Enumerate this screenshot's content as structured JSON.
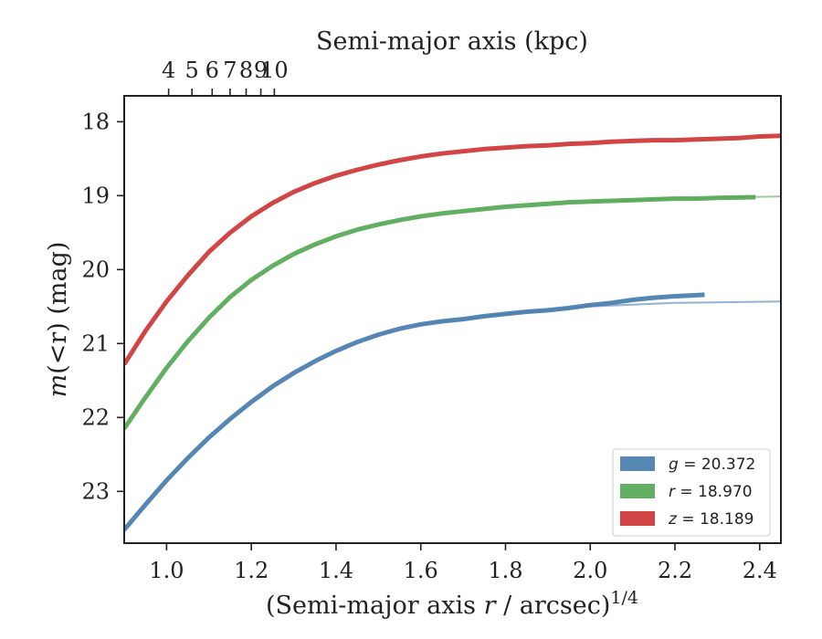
{
  "chart_data": {
    "type": "line",
    "xlabel": "(Semi-major axis ",
    "xlabel_var": "r",
    "xlabel_rest": " / arcsec)",
    "xlabel_exp": "1/4",
    "x2label": "Semi-major axis (kpc)",
    "ylabel": "m",
    "ylabel_rest": "(<r) (mag)",
    "xlim": [
      0.9,
      2.45
    ],
    "ylim": [
      23.7,
      17.65
    ],
    "y_inverted": true,
    "x_ticks": [
      "1.0",
      "1.2",
      "1.4",
      "1.6",
      "1.8",
      "2.0",
      "2.2",
      "2.4"
    ],
    "y_ticks": [
      "18",
      "19",
      "20",
      "21",
      "22",
      "23"
    ],
    "x2_ticks": [
      "4",
      "5",
      "6",
      "7",
      "8",
      "9",
      "10"
    ],
    "x2_scale_note": "kpc = 4.12 * x^4 - 0.2 approx",
    "legend_position": "lower-right",
    "series": [
      {
        "name": "g = 20.372",
        "band": "g",
        "total": "20.372",
        "color": "#4c7fb0",
        "x": [
          0.9,
          0.95,
          1.0,
          1.05,
          1.1,
          1.15,
          1.2,
          1.25,
          1.3,
          1.35,
          1.4,
          1.45,
          1.5,
          1.55,
          1.6,
          1.65,
          1.7,
          1.75,
          1.8,
          1.85,
          1.9,
          1.95,
          2.0,
          2.05,
          2.1,
          2.15,
          2.2,
          2.27
        ],
        "y": [
          23.52,
          23.18,
          22.85,
          22.55,
          22.27,
          22.02,
          21.79,
          21.58,
          21.4,
          21.24,
          21.1,
          20.98,
          20.88,
          20.8,
          20.74,
          20.7,
          20.67,
          20.63,
          20.6,
          20.57,
          20.55,
          20.52,
          20.48,
          20.45,
          20.41,
          20.38,
          20.36,
          20.34
        ],
        "model_x": [
          1.6,
          1.8,
          2.0,
          2.2,
          2.45
        ],
        "model_y": [
          20.74,
          20.6,
          20.5,
          20.45,
          20.43
        ]
      },
      {
        "name": "r = 18.970",
        "band": "r",
        "total": "18.970",
        "color": "#5aaa5a",
        "x": [
          0.9,
          0.95,
          1.0,
          1.05,
          1.1,
          1.15,
          1.2,
          1.25,
          1.3,
          1.35,
          1.4,
          1.45,
          1.5,
          1.55,
          1.6,
          1.65,
          1.7,
          1.75,
          1.8,
          1.85,
          1.9,
          1.95,
          2.0,
          2.05,
          2.1,
          2.15,
          2.2,
          2.25,
          2.3,
          2.39
        ],
        "y": [
          22.15,
          21.73,
          21.33,
          20.97,
          20.65,
          20.37,
          20.14,
          19.95,
          19.79,
          19.66,
          19.55,
          19.46,
          19.39,
          19.33,
          19.28,
          19.24,
          19.21,
          19.18,
          19.15,
          19.13,
          19.11,
          19.09,
          19.08,
          19.07,
          19.06,
          19.05,
          19.04,
          19.04,
          19.03,
          19.02
        ],
        "model_x": [
          2.0,
          2.2,
          2.45
        ],
        "model_y": [
          19.08,
          19.04,
          19.01
        ]
      },
      {
        "name": "z = 18.189",
        "band": "z",
        "total": "18.189",
        "color": "#cf3b3b",
        "x": [
          0.9,
          0.95,
          1.0,
          1.05,
          1.1,
          1.15,
          1.2,
          1.25,
          1.3,
          1.35,
          1.4,
          1.45,
          1.5,
          1.55,
          1.6,
          1.65,
          1.7,
          1.75,
          1.8,
          1.85,
          1.9,
          1.95,
          2.0,
          2.05,
          2.1,
          2.15,
          2.2,
          2.25,
          2.3,
          2.35,
          2.4,
          2.45
        ],
        "y": [
          21.28,
          20.83,
          20.43,
          20.08,
          19.76,
          19.5,
          19.28,
          19.1,
          18.95,
          18.83,
          18.73,
          18.65,
          18.58,
          18.52,
          18.47,
          18.43,
          18.4,
          18.37,
          18.35,
          18.33,
          18.32,
          18.3,
          18.29,
          18.27,
          18.26,
          18.25,
          18.25,
          18.24,
          18.23,
          18.22,
          18.2,
          18.19
        ]
      }
    ]
  }
}
